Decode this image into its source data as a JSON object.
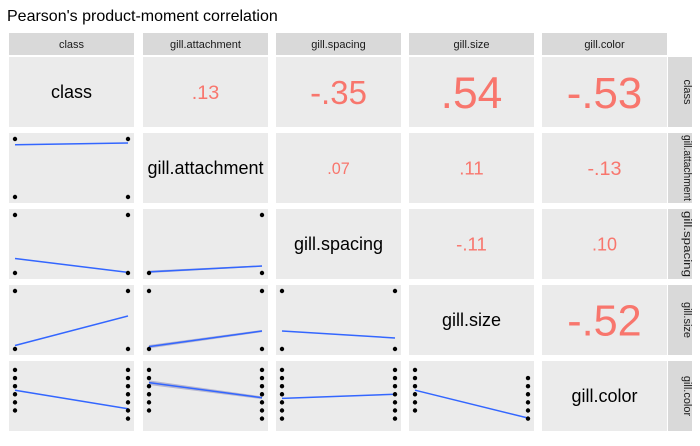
{
  "chart_data": {
    "type": "scatter-matrix",
    "title": "Pearson's product-moment correlation",
    "variables": [
      "class",
      "gill.attachment",
      "gill.spacing",
      "gill.size",
      "gill.color"
    ],
    "correlations": [
      {
        "row": 0,
        "col": 1,
        "label": ".13",
        "value": 0.13
      },
      {
        "row": 0,
        "col": 2,
        "label": "-.35",
        "value": -0.35
      },
      {
        "row": 0,
        "col": 3,
        "label": ".54",
        "value": 0.54
      },
      {
        "row": 0,
        "col": 4,
        "label": "-.53",
        "value": -0.53
      },
      {
        "row": 1,
        "col": 2,
        "label": ".07",
        "value": 0.07
      },
      {
        "row": 1,
        "col": 3,
        "label": ".11",
        "value": 0.11
      },
      {
        "row": 1,
        "col": 4,
        "label": "-.13",
        "value": -0.13
      },
      {
        "row": 2,
        "col": 3,
        "label": "-.11",
        "value": -0.11
      },
      {
        "row": 2,
        "col": 4,
        "label": ".10",
        "value": 0.1
      },
      {
        "row": 3,
        "col": 4,
        "label": "-.52",
        "value": -0.52
      }
    ],
    "scatter_panels": [
      {
        "row": 1,
        "col": 0,
        "points": [
          [
            0,
            0
          ],
          [
            1,
            0
          ],
          [
            0,
            1
          ],
          [
            1,
            1
          ]
        ],
        "fit": [
          [
            0,
            0.9
          ],
          [
            1,
            0.93
          ]
        ],
        "band": 0
      },
      {
        "row": 2,
        "col": 0,
        "points": [
          [
            0,
            0
          ],
          [
            1,
            0
          ],
          [
            0,
            1
          ],
          [
            1,
            1
          ]
        ],
        "fit": [
          [
            0,
            0.25
          ],
          [
            1,
            0.01
          ]
        ],
        "band": 0
      },
      {
        "row": 2,
        "col": 1,
        "points": [
          [
            0,
            0
          ],
          [
            1,
            0
          ],
          [
            1,
            1
          ]
        ],
        "fit": [
          [
            0,
            0.02
          ],
          [
            1,
            0.12
          ]
        ],
        "band": 0.02
      },
      {
        "row": 3,
        "col": 0,
        "points": [
          [
            0,
            0
          ],
          [
            1,
            0
          ],
          [
            0,
            1
          ],
          [
            1,
            1
          ]
        ],
        "fit": [
          [
            0,
            0.06
          ],
          [
            1,
            0.57
          ]
        ],
        "band": 0
      },
      {
        "row": 3,
        "col": 1,
        "points": [
          [
            0,
            0
          ],
          [
            1,
            0
          ],
          [
            0,
            1
          ],
          [
            1,
            1
          ]
        ],
        "fit": [
          [
            0,
            0.04
          ],
          [
            1,
            0.31
          ]
        ],
        "band": 0.03
      },
      {
        "row": 3,
        "col": 2,
        "points": [
          [
            0,
            0
          ],
          [
            1,
            0
          ],
          [
            0,
            1
          ],
          [
            1,
            1
          ]
        ],
        "fit": [
          [
            0,
            0.31
          ],
          [
            1,
            0.19
          ]
        ],
        "band": 0
      },
      {
        "row": 4,
        "col": 0,
        "points": [
          [
            0,
            0.25
          ],
          [
            0,
            0.39
          ],
          [
            0,
            0.53
          ],
          [
            0,
            0.67
          ],
          [
            0,
            0.81
          ],
          [
            0,
            0.95
          ],
          [
            1,
            0.11
          ],
          [
            1,
            0.25
          ],
          [
            1,
            0.39
          ],
          [
            1,
            0.53
          ],
          [
            1,
            0.67
          ],
          [
            1,
            0.81
          ],
          [
            1,
            0.95
          ]
        ],
        "fit": [
          [
            0,
            0.6
          ],
          [
            1,
            0.28
          ]
        ],
        "band": 0
      },
      {
        "row": 4,
        "col": 1,
        "points": [
          [
            0,
            0.25
          ],
          [
            0,
            0.39
          ],
          [
            0,
            0.53
          ],
          [
            0,
            0.67
          ],
          [
            0,
            0.81
          ],
          [
            0,
            0.95
          ],
          [
            1,
            0.11
          ],
          [
            1,
            0.25
          ],
          [
            1,
            0.39
          ],
          [
            1,
            0.53
          ],
          [
            1,
            0.67
          ],
          [
            1,
            0.81
          ],
          [
            1,
            0.95
          ]
        ],
        "fit": [
          [
            0,
            0.73
          ],
          [
            1,
            0.47
          ]
        ],
        "band": 0.04
      },
      {
        "row": 4,
        "col": 2,
        "points": [
          [
            0,
            0.11
          ],
          [
            0,
            0.25
          ],
          [
            0,
            0.39
          ],
          [
            0,
            0.53
          ],
          [
            0,
            0.67
          ],
          [
            0,
            0.81
          ],
          [
            0,
            0.95
          ],
          [
            1,
            0.11
          ],
          [
            1,
            0.25
          ],
          [
            1,
            0.39
          ],
          [
            1,
            0.53
          ],
          [
            1,
            0.67
          ],
          [
            1,
            0.81
          ],
          [
            1,
            0.95
          ]
        ],
        "fit": [
          [
            0,
            0.46
          ],
          [
            1,
            0.53
          ]
        ],
        "band": 0
      },
      {
        "row": 4,
        "col": 3,
        "points": [
          [
            0,
            0.25
          ],
          [
            0,
            0.39
          ],
          [
            0,
            0.53
          ],
          [
            0,
            0.67
          ],
          [
            0,
            0.81
          ],
          [
            0,
            0.95
          ],
          [
            1,
            0.11
          ],
          [
            1,
            0.25
          ],
          [
            1,
            0.39
          ],
          [
            1,
            0.53
          ],
          [
            1,
            0.67
          ],
          [
            1,
            0.81
          ]
        ],
        "fit": [
          [
            0,
            0.6
          ],
          [
            1,
            0.12
          ]
        ],
        "band": 0
      }
    ],
    "colors": {
      "corr_text": "#f8766d",
      "fit_line": "#3366ff",
      "band": "#a9a9c9",
      "panel_bg": "#ebebeb",
      "strip_bg": "#d9d9d9",
      "point": "#000000"
    },
    "grid": false,
    "legend": "none"
  }
}
